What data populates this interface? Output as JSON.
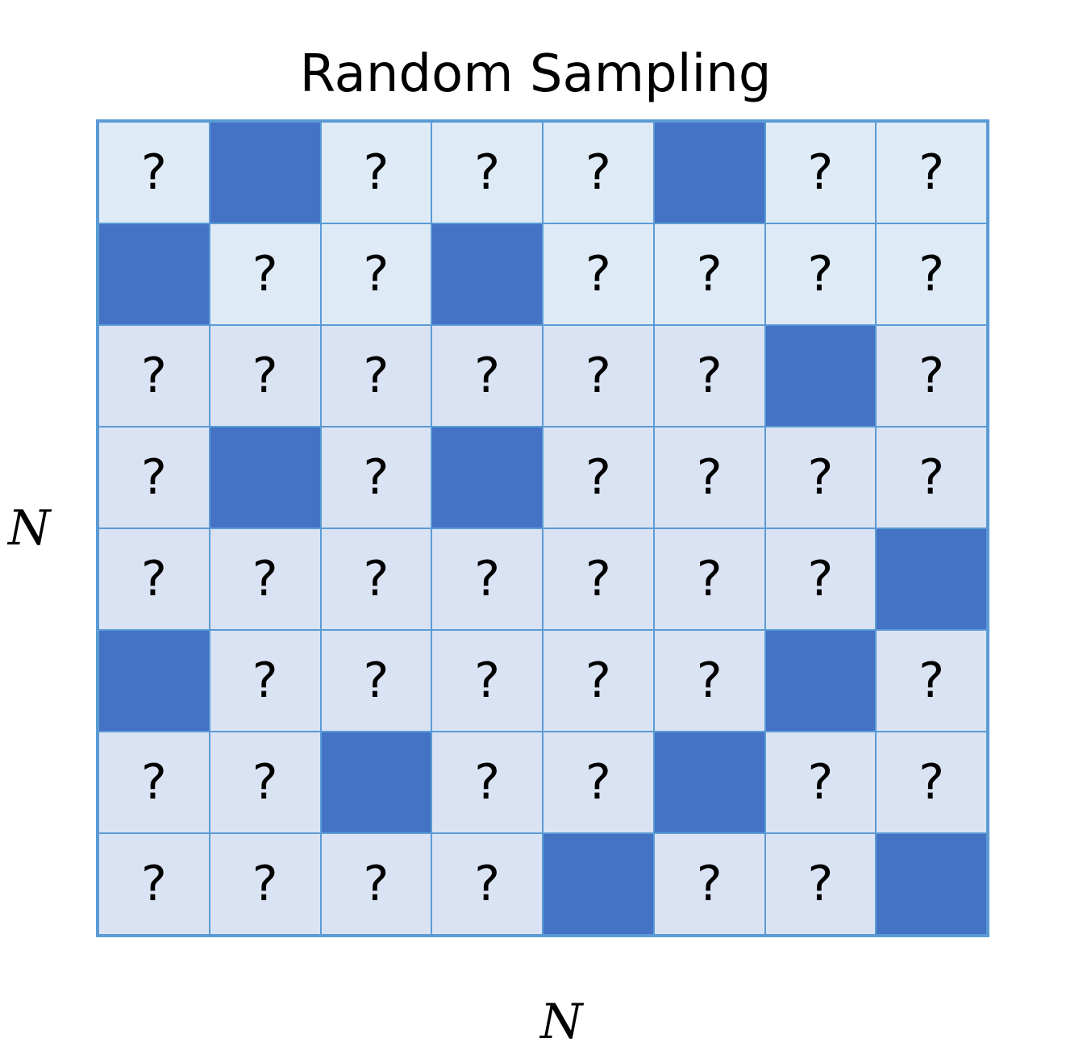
{
  "title": "Random Sampling",
  "axis": {
    "row_label": "N",
    "col_label": "N"
  },
  "unknown_symbol": "?",
  "colors": {
    "sampled": "#4472c4",
    "unknown_light": "#deebf7",
    "unknown": "#dae3f3",
    "border": "#5b9bd5"
  },
  "grid": {
    "rows": 8,
    "cols": 8,
    "sampled": [
      [
        0,
        1,
        0,
        0,
        0,
        1,
        0,
        0
      ],
      [
        1,
        0,
        0,
        1,
        0,
        0,
        0,
        0
      ],
      [
        0,
        0,
        0,
        0,
        0,
        0,
        1,
        0
      ],
      [
        0,
        1,
        0,
        1,
        0,
        0,
        0,
        0
      ],
      [
        0,
        0,
        0,
        0,
        0,
        0,
        0,
        1
      ],
      [
        1,
        0,
        0,
        0,
        0,
        0,
        1,
        0
      ],
      [
        0,
        0,
        1,
        0,
        0,
        1,
        0,
        0
      ],
      [
        0,
        0,
        0,
        0,
        1,
        0,
        0,
        1
      ]
    ]
  }
}
